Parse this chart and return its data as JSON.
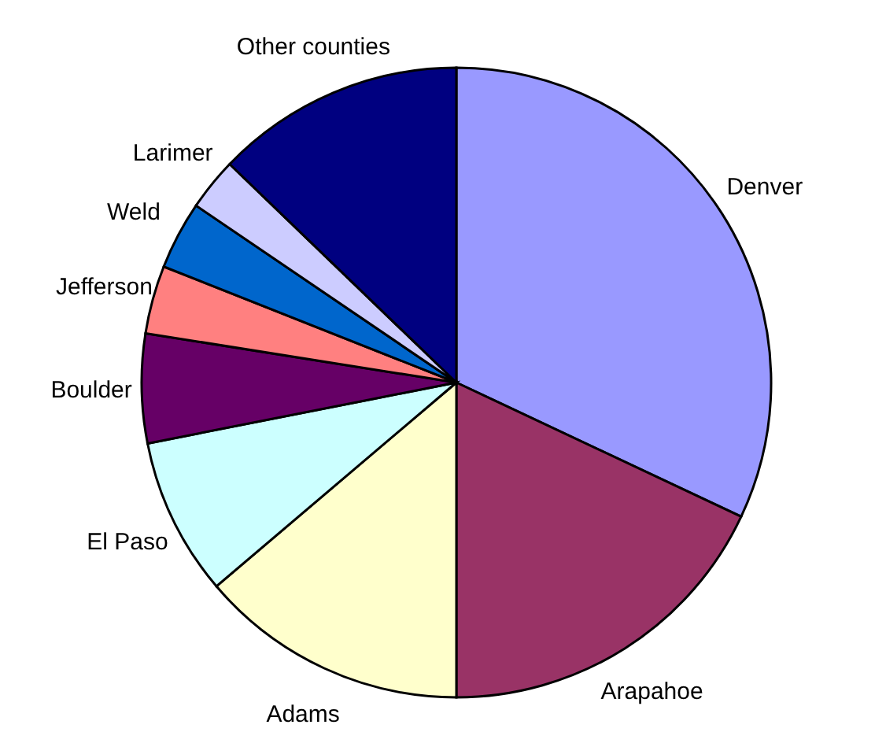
{
  "chart_data": {
    "type": "pie",
    "categories": [
      "Denver",
      "Arapahoe",
      "Adams",
      "El Paso",
      "Boulder",
      "Jefferson",
      "Weld",
      "Larimer",
      "Other counties"
    ],
    "values": [
      32,
      18,
      13.8,
      8.1,
      5.6,
      3.5,
      3.5,
      2.7,
      12.8
    ],
    "colors": [
      "#9999ff",
      "#993366",
      "#ffffcc",
      "#ccffff",
      "#660066",
      "#ff8080",
      "#0066cc",
      "#ccccff",
      "#000080"
    ]
  }
}
